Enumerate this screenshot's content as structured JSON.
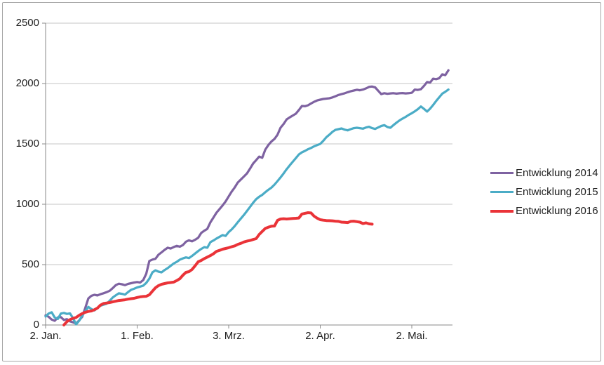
{
  "chart_data": {
    "type": "line",
    "title": "",
    "xlabel": "",
    "ylabel": "",
    "x_unit": "days, day 0 = 2. Jan.",
    "xlim": [
      0,
      133
    ],
    "ylim": [
      0,
      2500
    ],
    "grid": "horizontal",
    "legend_position": "right",
    "y_ticks": [
      0,
      500,
      1000,
      1500,
      2000,
      2500
    ],
    "x_ticks": [
      {
        "label": "2. Jan.",
        "day": 0
      },
      {
        "label": "1. Feb.",
        "day": 30
      },
      {
        "label": "3. Mrz.",
        "day": 60
      },
      {
        "label": "2. Apr.",
        "day": 90
      },
      {
        "label": "2. Mai.",
        "day": 120
      }
    ],
    "colors": {
      "gridline": "#c6c6c6",
      "axis": "#898989",
      "text": "#202020",
      "border": "#a6a6a6",
      "background": "#ffffff"
    },
    "series": [
      {
        "name": "Entwicklung 2014",
        "color": "#7E62A1",
        "start_day": 0,
        "values": [
          80,
          68,
          45,
          35,
          62,
          65,
          42,
          48,
          30,
          22,
          12,
          38,
          68,
          140,
          220,
          242,
          250,
          245,
          255,
          263,
          272,
          283,
          305,
          330,
          342,
          337,
          330,
          340,
          346,
          352,
          356,
          352,
          372,
          425,
          530,
          542,
          548,
          582,
          602,
          622,
          640,
          633,
          646,
          655,
          649,
          662,
          690,
          701,
          693,
          706,
          722,
          763,
          781,
          796,
          850,
          890,
          930,
          960,
          990,
          1023,
          1065,
          1105,
          1140,
          1180,
          1205,
          1230,
          1256,
          1295,
          1337,
          1365,
          1395,
          1385,
          1453,
          1490,
          1520,
          1541,
          1576,
          1634,
          1665,
          1703,
          1720,
          1735,
          1750,
          1780,
          1814,
          1812,
          1820,
          1835,
          1849,
          1860,
          1866,
          1872,
          1875,
          1878,
          1885,
          1895,
          1905,
          1912,
          1919,
          1928,
          1936,
          1942,
          1948,
          1944,
          1950,
          1960,
          1972,
          1975,
          1968,
          1940,
          1912,
          1920,
          1915,
          1918,
          1920,
          1916,
          1919,
          1921,
          1918,
          1920,
          1923,
          1950,
          1947,
          1953,
          1980,
          2012,
          2008,
          2040,
          2036,
          2044,
          2076,
          2070,
          2110
        ]
      },
      {
        "name": "Entwicklung 2015",
        "color": "#4BACC6",
        "start_day": 0,
        "values": [
          70,
          95,
          105,
          62,
          50,
          95,
          100,
          92,
          96,
          55,
          5,
          35,
          78,
          112,
          150,
          132,
          121,
          142,
          160,
          168,
          176,
          200,
          228,
          246,
          262,
          258,
          252,
          272,
          291,
          300,
          311,
          318,
          326,
          349,
          384,
          436,
          453,
          442,
          436,
          455,
          471,
          490,
          510,
          523,
          541,
          552,
          560,
          554,
          572,
          592,
          612,
          630,
          645,
          640,
          686,
          700,
          716,
          730,
          745,
          738,
          770,
          792,
          820,
          852,
          882,
          912,
          945,
          978,
          1012,
          1042,
          1062,
          1078,
          1100,
          1120,
          1138,
          1163,
          1192,
          1222,
          1255,
          1290,
          1322,
          1352,
          1382,
          1412,
          1430,
          1442,
          1456,
          1466,
          1480,
          1490,
          1500,
          1525,
          1555,
          1576,
          1600,
          1616,
          1622,
          1628,
          1618,
          1612,
          1622,
          1630,
          1634,
          1630,
          1626,
          1636,
          1642,
          1630,
          1624,
          1636,
          1648,
          1655,
          1640,
          1634,
          1656,
          1676,
          1695,
          1710,
          1724,
          1740,
          1754,
          1770,
          1788,
          1810,
          1790,
          1768,
          1792,
          1822,
          1856,
          1886,
          1916,
          1932,
          1950
        ]
      },
      {
        "name": "Entwicklung 2016",
        "color": "#EA3338",
        "start_day": 6,
        "values": [
          0,
          28,
          45,
          56,
          62,
          80,
          95,
          105,
          112,
          116,
          126,
          140,
          165,
          178,
          182,
          186,
          192,
          197,
          203,
          206,
          209,
          214,
          218,
          221,
          228,
          233,
          236,
          238,
          250,
          280,
          308,
          326,
          337,
          343,
          349,
          352,
          355,
          368,
          384,
          413,
          436,
          442,
          460,
          490,
          523,
          535,
          550,
          562,
          575,
          590,
          610,
          618,
          628,
          634,
          640,
          648,
          655,
          668,
          676,
          688,
          695,
          700,
          708,
          715,
          750,
          775,
          800,
          810,
          818,
          820,
          866,
          878,
          880,
          878,
          880,
          882,
          884,
          886,
          919,
          925,
          930,
          928,
          901,
          885,
          872,
          868,
          865,
          864,
          863,
          860,
          858,
          852,
          850,
          848,
          858,
          860,
          856,
          852,
          840,
          846,
          838,
          835
        ]
      }
    ]
  }
}
